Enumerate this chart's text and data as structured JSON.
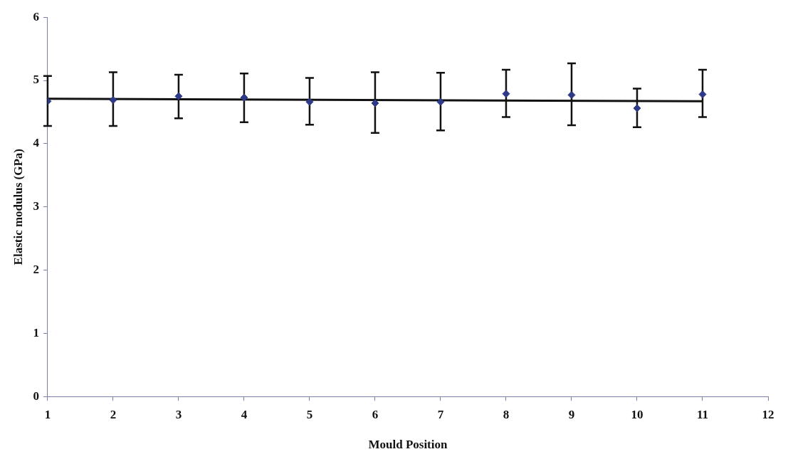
{
  "chart_data": {
    "type": "scatter",
    "xlabel": "Mould Position",
    "ylabel": "Elastic modulus (GPa)",
    "x": [
      1,
      2,
      3,
      4,
      5,
      6,
      7,
      8,
      9,
      10,
      11
    ],
    "xlim": [
      1,
      12
    ],
    "xticks": [
      1,
      2,
      3,
      4,
      5,
      6,
      7,
      8,
      9,
      10,
      11,
      12
    ],
    "ylim": [
      0,
      6
    ],
    "yticks": [
      0,
      1,
      2,
      3,
      4,
      5,
      6
    ],
    "grid": false,
    "legend": false,
    "series": [
      {
        "type": "scatter",
        "color": "#2e3a87",
        "marker": "diamond",
        "values": [
          4.67,
          4.69,
          4.75,
          4.73,
          4.66,
          4.64,
          4.66,
          4.79,
          4.77,
          4.56,
          4.78
        ],
        "errors": [
          [
            4.28,
            5.07
          ],
          [
            4.28,
            5.13
          ],
          [
            4.4,
            5.09
          ],
          [
            4.34,
            5.11
          ],
          [
            4.3,
            5.04
          ],
          [
            4.17,
            5.13
          ],
          [
            4.21,
            5.12
          ],
          [
            4.42,
            5.17
          ],
          [
            4.29,
            5.27
          ],
          [
            4.26,
            4.87
          ],
          [
            4.42,
            5.17
          ]
        ]
      },
      {
        "type": "line",
        "color": "#111111",
        "x": [
          1,
          11
        ],
        "values": [
          4.71,
          4.67
        ],
        "line_style": "solid"
      }
    ]
  }
}
